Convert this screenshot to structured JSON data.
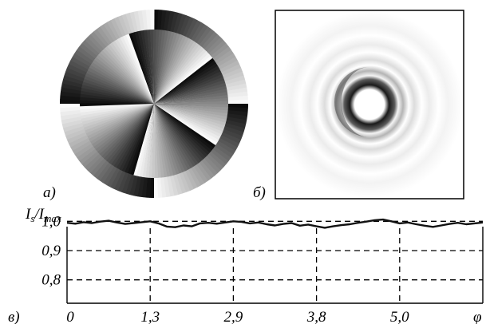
{
  "panels": {
    "a": {
      "label": "а)"
    },
    "b": {
      "label": "б)"
    },
    "c": {
      "label": "в)"
    }
  },
  "colors": {
    "ink": "#000000",
    "background": "#ffffff",
    "trace": "#111111"
  },
  "chart_data": {
    "type": "line",
    "ylabel_main": "I",
    "ylabel_num_sub": "s",
    "ylabel_slash": "/I",
    "ylabel_den_sub": "max",
    "xlabel": "φ",
    "ylim": [
      0.72,
      1.02
    ],
    "y_ticks": [
      {
        "value": 1.0,
        "label": "1,0"
      },
      {
        "value": 0.9,
        "label": "0,9"
      },
      {
        "value": 0.8,
        "label": "0,8"
      }
    ],
    "x_tick_labels": [
      "0",
      "1,3",
      "2,9",
      "3,8",
      "5,0"
    ],
    "grid": true,
    "series": [
      {
        "x": [
          0,
          0.02,
          0.04,
          0.06,
          0.08,
          0.1,
          0.12,
          0.14,
          0.16,
          0.18,
          0.2,
          0.22,
          0.24,
          0.26,
          0.28,
          0.3,
          0.32,
          0.34,
          0.36,
          0.38,
          0.4,
          0.42,
          0.44,
          0.46,
          0.48,
          0.5,
          0.52,
          0.54,
          0.56,
          0.58,
          0.6,
          0.62,
          0.64,
          0.66,
          0.68,
          0.7,
          0.72,
          0.74,
          0.76,
          0.78,
          0.8,
          0.82,
          0.84,
          0.86,
          0.88,
          0.9,
          0.92,
          0.94,
          0.96,
          0.98,
          1.0
        ],
        "values": [
          0.995,
          0.992,
          0.997,
          0.994,
          0.999,
          1.002,
          0.996,
          0.991,
          0.994,
          0.997,
          1.0,
          0.993,
          0.982,
          0.98,
          0.986,
          0.983,
          0.993,
          0.995,
          0.992,
          0.996,
          1.0,
          0.998,
          0.993,
          0.996,
          0.99,
          0.986,
          0.991,
          0.994,
          0.985,
          0.989,
          0.983,
          0.978,
          0.983,
          0.987,
          0.99,
          0.995,
          0.999,
          1.004,
          1.006,
          1.0,
          0.993,
          0.996,
          0.99,
          0.985,
          0.981,
          0.986,
          0.991,
          0.995,
          0.99,
          0.993,
          0.996
        ]
      }
    ]
  }
}
